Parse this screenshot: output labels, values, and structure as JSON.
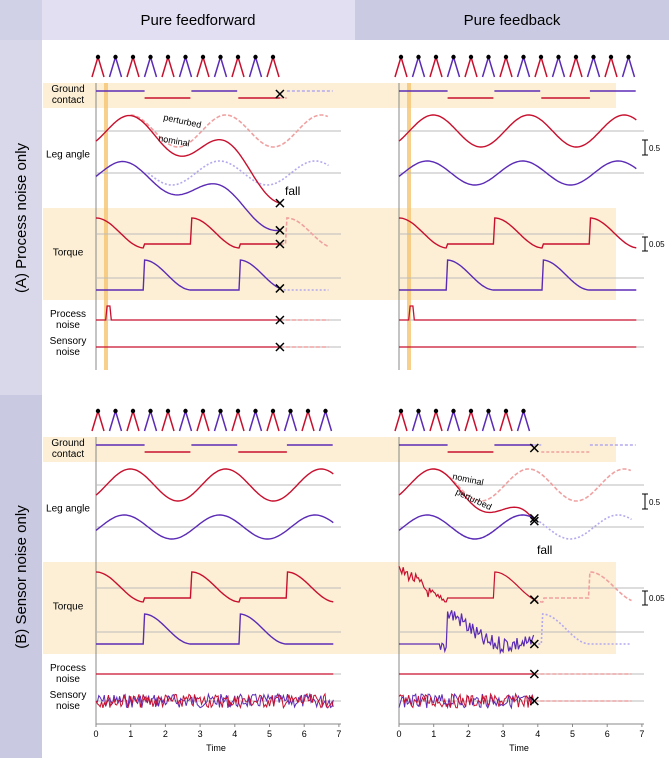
{
  "figure": {
    "columns": [
      "Pure feedforward",
      "Pure feedback"
    ],
    "panels": [
      "(A) Process noise only",
      "(B) Sensor noise only"
    ],
    "row_labels": [
      "Ground contact",
      "Leg angle",
      "Torque",
      "Process noise",
      "Sensory noise"
    ],
    "annotations": [
      "perturbed",
      "nominal",
      "fall"
    ],
    "scale_labels": [
      "0.5",
      "0.05"
    ],
    "time_axis": {
      "label": "Time",
      "ticks": [
        0,
        1,
        2,
        3,
        4,
        5,
        6,
        7
      ]
    }
  }
}
